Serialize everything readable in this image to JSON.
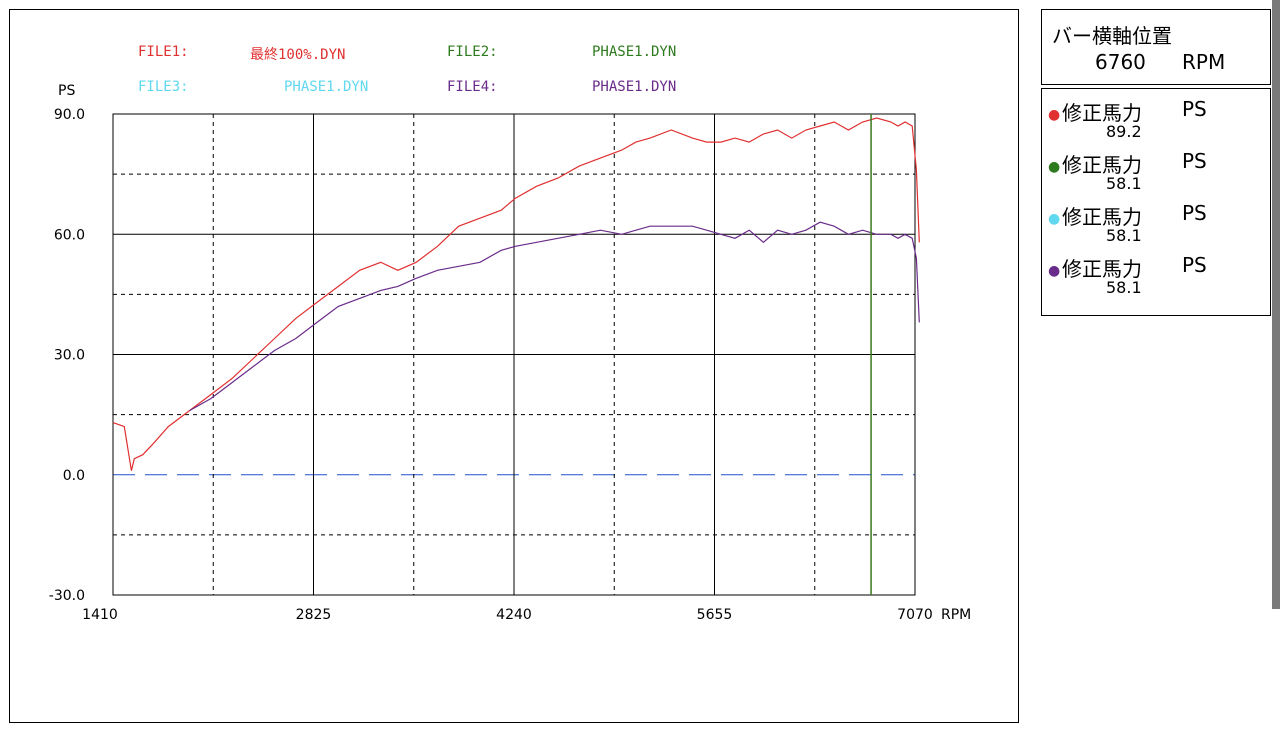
{
  "files": [
    {
      "label": "FILE1:",
      "name": "最終100%.DYN",
      "color": "#e03030"
    },
    {
      "label": "FILE2:",
      "name": "PHASE1.DYN",
      "color": "#2e7a1e"
    },
    {
      "label": "FILE3:",
      "name": "PHASE1.DYN",
      "color": "#5fd8f0"
    },
    {
      "label": "FILE4:",
      "name": "PHASE1.DYN",
      "color": "#6a2c8a"
    }
  ],
  "bar_panel": {
    "title": "バー横軸位置",
    "value": "6760",
    "unit": "RPM"
  },
  "legend": [
    {
      "label": "修正馬力",
      "unit": "PS",
      "value": "89.2",
      "color": "#e03030"
    },
    {
      "label": "修正馬力",
      "unit": "PS",
      "value": "58.1",
      "color": "#2e7a1e"
    },
    {
      "label": "修正馬力",
      "unit": "PS",
      "value": "58.1",
      "color": "#5fd8f0"
    },
    {
      "label": "修正馬力",
      "unit": "PS",
      "value": "58.1",
      "color": "#6a2c8a"
    }
  ],
  "chart_data": {
    "type": "line",
    "ylabel": "PS",
    "xlabel": "RPM",
    "ylim": [
      -30,
      90
    ],
    "xlim": [
      1410,
      7070
    ],
    "y_ticks": [
      "90.0",
      "60.0",
      "30.0",
      "0.0",
      "-30.0"
    ],
    "x_ticks": [
      "1410",
      "2825",
      "4240",
      "5655",
      "7070"
    ],
    "grid": true,
    "zero_line_color": "#2050d0",
    "cursor_rpm": 6760,
    "cursor_color": "#3a7a1e",
    "series": [
      {
        "color": "#e03030",
        "x": [
          1410,
          1490,
          1540,
          1560,
          1620,
          1700,
          1800,
          1950,
          2100,
          2250,
          2400,
          2550,
          2700,
          2850,
          3000,
          3150,
          3300,
          3420,
          3550,
          3700,
          3850,
          4000,
          4150,
          4250,
          4400,
          4550,
          4700,
          4850,
          5000,
          5100,
          5200,
          5350,
          5500,
          5600,
          5700,
          5800,
          5900,
          6000,
          6100,
          6200,
          6300,
          6400,
          6500,
          6600,
          6700,
          6800,
          6900,
          6950,
          7000,
          7050,
          7080,
          7100
        ],
        "y": [
          13,
          12,
          1,
          4,
          5,
          8,
          12,
          16,
          20,
          24,
          29,
          34,
          39,
          43,
          47,
          51,
          53,
          51,
          53,
          57,
          62,
          64,
          66,
          69,
          72,
          74,
          77,
          79,
          81,
          83,
          84,
          86,
          84,
          83,
          83,
          84,
          83,
          85,
          86,
          84,
          86,
          87,
          88,
          86,
          88,
          89,
          88,
          87,
          88,
          87,
          76,
          58
        ]
      },
      {
        "color": "#6a2c8a",
        "x": [
          1950,
          2100,
          2250,
          2400,
          2550,
          2700,
          2850,
          3000,
          3150,
          3300,
          3420,
          3550,
          3700,
          3850,
          4000,
          4150,
          4250,
          4400,
          4550,
          4700,
          4850,
          5000,
          5100,
          5200,
          5350,
          5500,
          5600,
          5700,
          5800,
          5900,
          6000,
          6100,
          6200,
          6300,
          6400,
          6500,
          6600,
          6700,
          6800,
          6900,
          6950,
          7000,
          7050,
          7080,
          7100
        ],
        "y": [
          16,
          19,
          23,
          27,
          31,
          34,
          38,
          42,
          44,
          46,
          47,
          49,
          51,
          52,
          53,
          56,
          57,
          58,
          59,
          60,
          61,
          60,
          61,
          62,
          62,
          62,
          61,
          60,
          59,
          61,
          58,
          61,
          60,
          61,
          63,
          62,
          60,
          61,
          60,
          60,
          59,
          60,
          59,
          54,
          38
        ]
      }
    ]
  }
}
